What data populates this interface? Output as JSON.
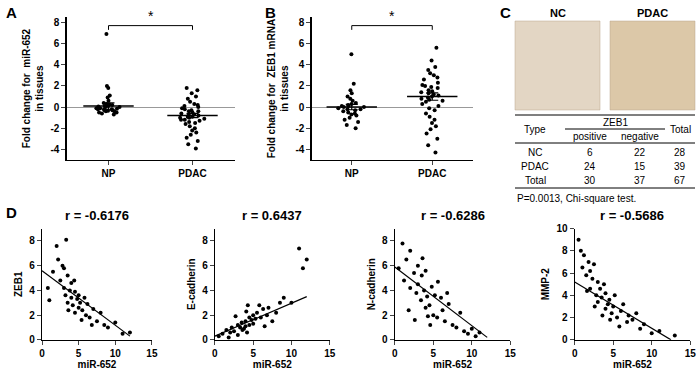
{
  "chart_data": [
    {
      "panel": "A",
      "type": "dot",
      "categories": [
        "NP",
        "PDAC"
      ],
      "y_label": "Fold change for  miR-652\nin tissues",
      "points": [
        [
          6.9,
          2.0,
          1.8,
          1.1,
          0.9,
          0.6,
          0.4,
          0.3,
          0.2,
          0.1,
          0.1,
          0.0,
          0.0,
          -0.1,
          -0.1,
          -0.2,
          -0.2,
          -0.3,
          -0.3,
          -0.4,
          -0.4,
          -0.5,
          -0.5,
          -0.6,
          -0.7,
          -0.2,
          0.05,
          -0.15,
          0.25,
          -0.35
        ],
        [
          1.8,
          1.6,
          1.3,
          1.0,
          0.8,
          0.5,
          0.3,
          0.1,
          0.0,
          -0.1,
          -0.2,
          -0.3,
          -0.4,
          -0.5,
          -0.6,
          -0.7,
          -0.7,
          -0.8,
          -0.9,
          -1.0,
          -1.0,
          -1.1,
          -1.2,
          -1.3,
          -1.4,
          -1.5,
          -1.6,
          -1.8,
          -2.0,
          -2.2,
          -2.4,
          -2.6,
          -2.9,
          -3.2,
          -3.5,
          -3.9,
          -0.4,
          -0.9,
          -1.2,
          0.2
        ]
      ],
      "mean": [
        0.1,
        -0.8
      ],
      "sem": [
        0.3,
        0.2
      ],
      "significance": {
        "label": "*",
        "y": 7.7
      },
      "ylim": [
        -5,
        8.5
      ],
      "yticks": [
        -4,
        -2,
        0,
        2,
        4,
        6,
        8
      ],
      "color": "#000000",
      "marker": "circle"
    },
    {
      "panel": "B",
      "type": "dot",
      "categories": [
        "NP",
        "PDAC"
      ],
      "y_label": "Fold change for  ZEB1 mRNA\nin tissues",
      "points": [
        [
          5.0,
          2.2,
          1.6,
          1.3,
          1.0,
          0.8,
          0.6,
          0.4,
          0.3,
          0.2,
          0.1,
          0.0,
          0.0,
          -0.1,
          -0.2,
          -0.3,
          -0.4,
          -0.5,
          -0.6,
          -0.7,
          -0.8,
          -1.0,
          -1.2,
          -1.4,
          -1.7,
          -2.0,
          -0.2,
          0.1
        ],
        [
          5.6,
          4.4,
          3.8,
          3.5,
          3.2,
          3.0,
          2.8,
          2.6,
          2.3,
          2.1,
          1.9,
          1.8,
          1.6,
          1.5,
          1.4,
          1.2,
          1.1,
          1.0,
          0.9,
          0.8,
          0.6,
          0.5,
          0.3,
          0.1,
          -0.1,
          -0.3,
          -0.6,
          -0.9,
          -1.2,
          -1.5,
          -1.8,
          -2.1,
          -2.5,
          -3.0,
          -3.6,
          -4.3,
          1.3,
          0.7,
          2.0
        ]
      ],
      "mean": [
        0.0,
        1.0
      ],
      "sem": [
        0.25,
        0.35
      ],
      "significance": {
        "label": "*",
        "y": 7.7
      },
      "ylim": [
        -5,
        8.5
      ],
      "yticks": [
        -4,
        -2,
        0,
        2,
        4,
        6,
        8
      ],
      "color": "#000000",
      "marker": "circle"
    },
    {
      "panel": "C",
      "type": "image",
      "labels": [
        "NC",
        "PDAC"
      ]
    },
    {
      "type": "table",
      "header": [
        "Type",
        "ZEB1",
        "Total"
      ],
      "subheader": [
        "positive",
        "negative"
      ],
      "rows": [
        [
          "NC",
          6,
          22,
          28
        ],
        [
          "PDAC",
          24,
          15,
          39
        ],
        [
          "Total",
          30,
          37,
          67
        ]
      ],
      "note": "P=0.0013, Chi-square test."
    },
    {
      "panel": "D",
      "type": "scatter",
      "annotation": "r = -0.6176",
      "x_label": "miR-652",
      "y_label": "ZEB1",
      "x": [
        1,
        1.5,
        2,
        2.2,
        2.5,
        3,
        3,
        3.2,
        3.5,
        3.5,
        3.8,
        4,
        4,
        4.2,
        4.5,
        4.5,
        4.8,
        5,
        5,
        5.2,
        5.5,
        5.8,
        6,
        6.2,
        6.5,
        7,
        7.5,
        8,
        8.5,
        9,
        10,
        11,
        12,
        0.8,
        2.8,
        3.6,
        4.4,
        5.4,
        6.8,
        3.3
      ],
      "y": [
        3.2,
        5.5,
        7.6,
        6.5,
        4.8,
        5.8,
        4.2,
        3.6,
        5.2,
        3.0,
        4.0,
        4.6,
        3.4,
        2.8,
        3.9,
        2.2,
        3.3,
        3.6,
        2.6,
        3.0,
        2.4,
        3.4,
        2.0,
        2.9,
        1.8,
        2.5,
        1.5,
        2.2,
        1.2,
        1.0,
        1.4,
        0.5,
        0.6,
        4.2,
        6.0,
        2.4,
        4.8,
        1.6,
        1.2,
        8.1
      ],
      "fit": {
        "x": [
          0,
          12
        ],
        "y": [
          5.6,
          0.3
        ]
      },
      "xlim": [
        0,
        15
      ],
      "xticks": [
        0,
        5,
        10,
        15
      ],
      "ylim": [
        0,
        9
      ],
      "yticks": [
        0,
        2,
        4,
        6,
        8
      ],
      "color": "#000000",
      "marker": "circle"
    },
    {
      "type": "scatter",
      "annotation": "r = 0.6437",
      "x_label": "miR-652",
      "y_label": "E-cadherin",
      "x": [
        0.5,
        1,
        1.5,
        2,
        2.2,
        2.5,
        3,
        3,
        3.3,
        3.5,
        3.8,
        4,
        4,
        4.2,
        4.5,
        4.5,
        4.8,
        5,
        5,
        5.3,
        5.5,
        6,
        6.3,
        6.8,
        7,
        7.5,
        8,
        8.5,
        9,
        10,
        11,
        11.5,
        12,
        3.6,
        4.3,
        2.7,
        5.8,
        6.5,
        1.8,
        4.1
      ],
      "y": [
        0.3,
        0.5,
        0.8,
        0.6,
        1.0,
        0.7,
        1.2,
        0.4,
        1.0,
        1.4,
        0.9,
        1.5,
        1.1,
        0.6,
        1.8,
        1.2,
        1.6,
        2.0,
        1.3,
        1.7,
        2.2,
        1.8,
        2.5,
        2.0,
        2.6,
        1.5,
        2.2,
        3.0,
        3.4,
        3.0,
        7.4,
        5.8,
        6.5,
        0.8,
        2.8,
        1.9,
        2.8,
        1.1,
        0.2,
        2.3
      ],
      "fit": {
        "x": [
          0,
          12
        ],
        "y": [
          0.3,
          3.5
        ]
      },
      "xlim": [
        0,
        15
      ],
      "xticks": [
        0,
        5,
        10,
        15
      ],
      "ylim": [
        0,
        9
      ],
      "yticks": [
        0,
        2,
        4,
        6,
        8
      ],
      "color": "#000000",
      "marker": "circle"
    },
    {
      "type": "scatter",
      "annotation": "r = -0.6286",
      "x_label": "miR-652",
      "y_label": "N-cadherin",
      "x": [
        0.5,
        1,
        1.2,
        1.5,
        2,
        2,
        2.5,
        2.8,
        3,
        3,
        3.4,
        3.5,
        3.8,
        4,
        4,
        4.2,
        4.5,
        4.8,
        5,
        5.2,
        5.5,
        6,
        6.2,
        6.5,
        7,
        7.5,
        8,
        8.5,
        9,
        9.5,
        10,
        10.5,
        11,
        1.8,
        2.6,
        3.6,
        4.6,
        5.6,
        6.8,
        4.3
      ],
      "y": [
        5.8,
        7.8,
        4.8,
        6.5,
        4.2,
        7.2,
        5.4,
        3.8,
        6.0,
        4.5,
        3.2,
        5.2,
        4.0,
        2.6,
        5.6,
        3.5,
        2.8,
        4.3,
        2.0,
        3.6,
        1.8,
        3.4,
        2.4,
        1.5,
        2.9,
        1.2,
        1.0,
        2.2,
        0.7,
        0.5,
        0.9,
        0.3,
        0.6,
        2.4,
        1.6,
        6.6,
        1.2,
        4.7,
        3.8,
        1.9
      ],
      "fit": {
        "x": [
          0,
          12
        ],
        "y": [
          5.9,
          0.2
        ]
      },
      "xlim": [
        0,
        15
      ],
      "xticks": [
        0,
        5,
        10,
        15
      ],
      "ylim": [
        0,
        9
      ],
      "yticks": [
        0,
        2,
        4,
        6,
        8
      ],
      "color": "#000000",
      "marker": "circle"
    },
    {
      "type": "scatter",
      "annotation": "r = -0.5686",
      "x_label": "miR-652",
      "y_label": "MMP-2",
      "x": [
        0.5,
        0.8,
        1,
        1.2,
        1.5,
        1.8,
        2,
        2,
        2.3,
        2.5,
        2.8,
        3,
        3,
        3.3,
        3.5,
        3.8,
        4,
        4,
        4.3,
        4.5,
        4.8,
        5,
        5.2,
        5.5,
        6,
        6.3,
        6.8,
        7,
        7.5,
        8,
        8.5,
        9,
        10,
        11,
        13,
        1.6,
        2.6,
        3.6,
        4.6,
        5.8
      ],
      "y": [
        9.0,
        8.0,
        6.5,
        7.6,
        5.8,
        7.0,
        6.2,
        4.6,
        5.5,
        6.8,
        4.0,
        5.2,
        3.4,
        4.6,
        3.8,
        5.0,
        2.8,
        4.2,
        3.2,
        3.6,
        2.4,
        3.0,
        4.0,
        2.0,
        2.6,
        3.2,
        1.6,
        2.2,
        1.8,
        2.4,
        1.0,
        1.4,
        0.6,
        0.8,
        0.4,
        4.4,
        3.0,
        2.2,
        1.8,
        1.2
      ],
      "fit": {
        "x": [
          0,
          12.5
        ],
        "y": [
          5.2,
          0
        ]
      },
      "xlim": [
        0,
        15
      ],
      "xticks": [
        0,
        5,
        10,
        15
      ],
      "ylim": [
        0,
        10
      ],
      "yticks": [
        0,
        2,
        4,
        6,
        8,
        10
      ],
      "color": "#000000",
      "marker": "circle"
    }
  ]
}
